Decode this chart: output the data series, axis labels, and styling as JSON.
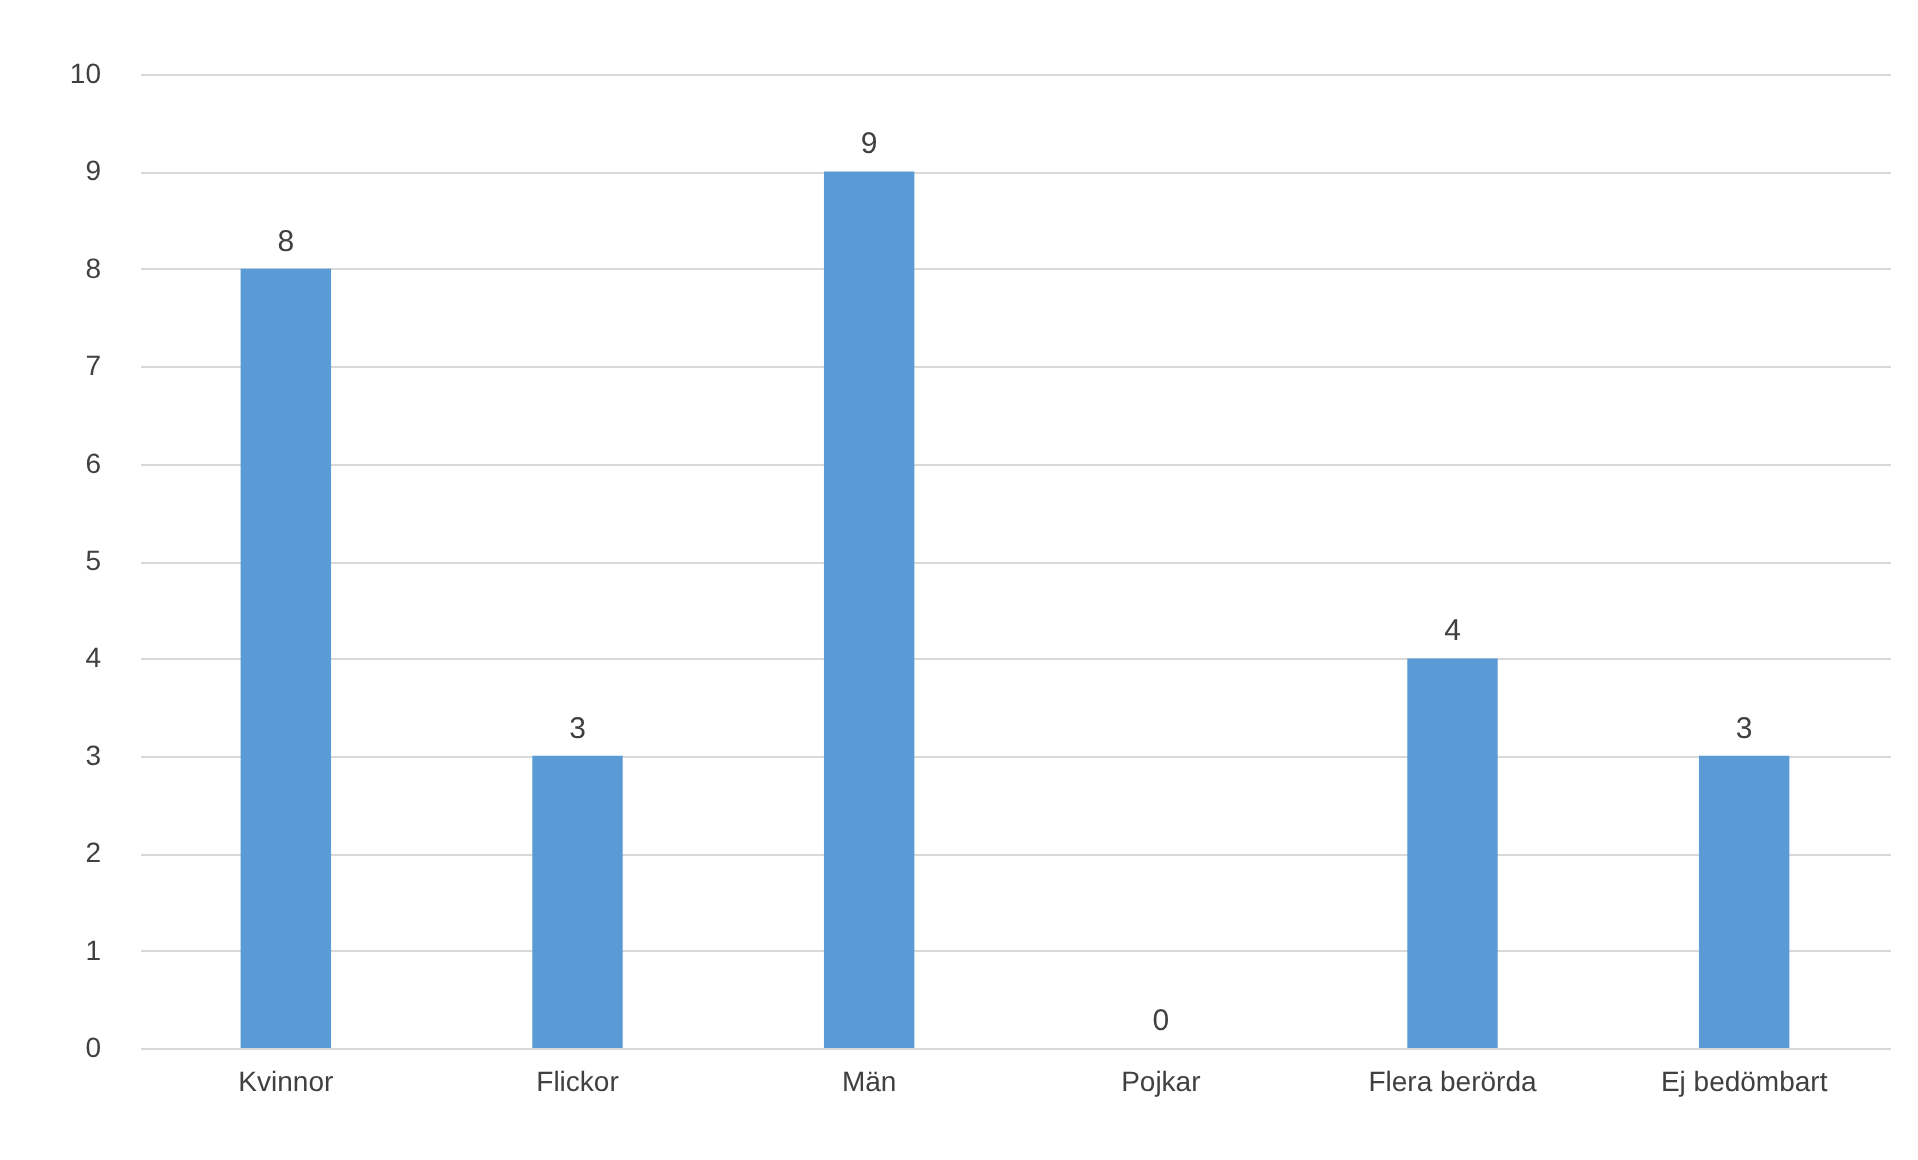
{
  "chart_data": {
    "type": "bar",
    "categories": [
      "Kvinnor",
      "Flickor",
      "Män",
      "Pojkar",
      "Flera berörda",
      "Ej bedömbart"
    ],
    "values": [
      8,
      3,
      9,
      0,
      4,
      3
    ],
    "color": "#5b9bd5",
    "ylim": [
      0,
      10
    ],
    "yticks": [
      0,
      1,
      2,
      3,
      4,
      5,
      6,
      7,
      8,
      9,
      10
    ],
    "grid": "y",
    "data_labels": true
  }
}
